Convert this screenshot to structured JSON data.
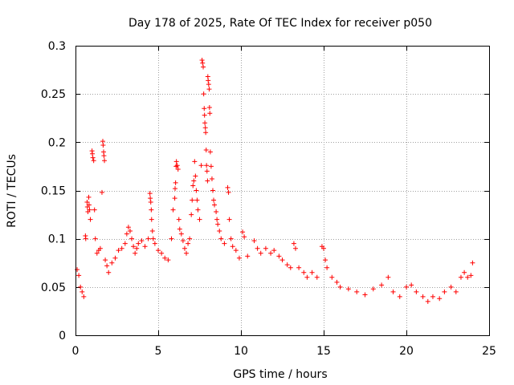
{
  "chart_data": {
    "type": "scatter",
    "title": "Day 178 of 2025, Rate Of TEC Index for receiver p050",
    "xlabel": "GPS time / hours",
    "ylabel": "ROTI / TECUs",
    "xlim": [
      0,
      25
    ],
    "ylim": [
      0,
      0.3
    ],
    "x_ticks": [
      0,
      5,
      10,
      15,
      20,
      25
    ],
    "x_tick_labels": [
      "0",
      "5",
      "10",
      "15",
      "20",
      "25"
    ],
    "y_ticks": [
      0,
      0.05,
      0.1,
      0.15,
      0.2,
      0.25,
      0.3
    ],
    "y_tick_labels": [
      "0",
      "0.05",
      "0.1",
      "0.15",
      "0.2",
      "0.25",
      "0.3"
    ],
    "grid": true,
    "marker": "+",
    "color": "#ff0000",
    "series": [
      {
        "name": "ROTI",
        "points": [
          [
            0.1,
            0.068
          ],
          [
            0.2,
            0.062
          ],
          [
            0.3,
            0.05
          ],
          [
            0.4,
            0.045
          ],
          [
            0.5,
            0.04
          ],
          [
            0.6,
            0.103
          ],
          [
            0.62,
            0.1
          ],
          [
            0.7,
            0.138
          ],
          [
            0.72,
            0.133
          ],
          [
            0.75,
            0.128
          ],
          [
            0.8,
            0.143
          ],
          [
            0.82,
            0.135
          ],
          [
            0.85,
            0.13
          ],
          [
            0.9,
            0.12
          ],
          [
            1.0,
            0.191
          ],
          [
            1.02,
            0.188
          ],
          [
            1.05,
            0.184
          ],
          [
            1.1,
            0.181
          ],
          [
            1.15,
            0.13
          ],
          [
            1.2,
            0.1
          ],
          [
            1.3,
            0.085
          ],
          [
            1.4,
            0.088
          ],
          [
            1.5,
            0.09
          ],
          [
            1.6,
            0.148
          ],
          [
            1.65,
            0.201
          ],
          [
            1.67,
            0.197
          ],
          [
            1.7,
            0.19
          ],
          [
            1.72,
            0.186
          ],
          [
            1.75,
            0.181
          ],
          [
            1.8,
            0.078
          ],
          [
            1.9,
            0.072
          ],
          [
            2.0,
            0.065
          ],
          [
            2.2,
            0.075
          ],
          [
            2.4,
            0.08
          ],
          [
            2.6,
            0.088
          ],
          [
            2.8,
            0.09
          ],
          [
            3.0,
            0.095
          ],
          [
            3.1,
            0.105
          ],
          [
            3.2,
            0.112
          ],
          [
            3.3,
            0.108
          ],
          [
            3.4,
            0.1
          ],
          [
            3.5,
            0.092
          ],
          [
            3.6,
            0.085
          ],
          [
            3.7,
            0.09
          ],
          [
            3.8,
            0.095
          ],
          [
            4.0,
            0.098
          ],
          [
            4.2,
            0.092
          ],
          [
            4.4,
            0.1
          ],
          [
            4.5,
            0.147
          ],
          [
            4.52,
            0.142
          ],
          [
            4.55,
            0.138
          ],
          [
            4.58,
            0.13
          ],
          [
            4.6,
            0.12
          ],
          [
            4.65,
            0.108
          ],
          [
            4.7,
            0.1
          ],
          [
            4.8,
            0.095
          ],
          [
            5.0,
            0.088
          ],
          [
            5.2,
            0.085
          ],
          [
            5.4,
            0.08
          ],
          [
            5.6,
            0.078
          ],
          [
            5.8,
            0.1
          ],
          [
            5.9,
            0.13
          ],
          [
            6.0,
            0.142
          ],
          [
            6.02,
            0.152
          ],
          [
            6.05,
            0.158
          ],
          [
            6.08,
            0.175
          ],
          [
            6.1,
            0.18
          ],
          [
            6.15,
            0.176
          ],
          [
            6.2,
            0.172
          ],
          [
            6.25,
            0.12
          ],
          [
            6.3,
            0.11
          ],
          [
            6.4,
            0.105
          ],
          [
            6.5,
            0.098
          ],
          [
            6.6,
            0.09
          ],
          [
            6.7,
            0.085
          ],
          [
            6.8,
            0.095
          ],
          [
            6.9,
            0.1
          ],
          [
            7.0,
            0.125
          ],
          [
            7.05,
            0.14
          ],
          [
            7.1,
            0.155
          ],
          [
            7.15,
            0.16
          ],
          [
            7.2,
            0.18
          ],
          [
            7.25,
            0.165
          ],
          [
            7.3,
            0.15
          ],
          [
            7.35,
            0.14
          ],
          [
            7.4,
            0.13
          ],
          [
            7.5,
            0.12
          ],
          [
            7.6,
            0.176
          ],
          [
            7.65,
            0.285
          ],
          [
            7.68,
            0.282
          ],
          [
            7.72,
            0.278
          ],
          [
            7.75,
            0.25
          ],
          [
            7.78,
            0.235
          ],
          [
            7.8,
            0.228
          ],
          [
            7.82,
            0.22
          ],
          [
            7.85,
            0.215
          ],
          [
            7.87,
            0.21
          ],
          [
            7.9,
            0.192
          ],
          [
            7.92,
            0.176
          ],
          [
            7.95,
            0.17
          ],
          [
            7.98,
            0.16
          ],
          [
            8.0,
            0.268
          ],
          [
            8.02,
            0.264
          ],
          [
            8.05,
            0.26
          ],
          [
            8.08,
            0.255
          ],
          [
            8.1,
            0.236
          ],
          [
            8.12,
            0.23
          ],
          [
            8.15,
            0.19
          ],
          [
            8.2,
            0.175
          ],
          [
            8.25,
            0.162
          ],
          [
            8.3,
            0.15
          ],
          [
            8.35,
            0.14
          ],
          [
            8.4,
            0.135
          ],
          [
            8.5,
            0.128
          ],
          [
            8.55,
            0.12
          ],
          [
            8.6,
            0.115
          ],
          [
            8.7,
            0.108
          ],
          [
            8.8,
            0.1
          ],
          [
            9.0,
            0.095
          ],
          [
            9.2,
            0.153
          ],
          [
            9.25,
            0.148
          ],
          [
            9.3,
            0.12
          ],
          [
            9.4,
            0.1
          ],
          [
            9.5,
            0.092
          ],
          [
            9.7,
            0.088
          ],
          [
            9.9,
            0.08
          ],
          [
            10.1,
            0.107
          ],
          [
            10.2,
            0.102
          ],
          [
            10.4,
            0.082
          ],
          [
            10.8,
            0.098
          ],
          [
            11.0,
            0.09
          ],
          [
            11.2,
            0.085
          ],
          [
            11.5,
            0.09
          ],
          [
            11.8,
            0.085
          ],
          [
            12.0,
            0.088
          ],
          [
            12.3,
            0.082
          ],
          [
            12.5,
            0.078
          ],
          [
            12.8,
            0.073
          ],
          [
            13.0,
            0.07
          ],
          [
            13.2,
            0.095
          ],
          [
            13.3,
            0.09
          ],
          [
            13.5,
            0.07
          ],
          [
            13.8,
            0.065
          ],
          [
            14.0,
            0.06
          ],
          [
            14.3,
            0.065
          ],
          [
            14.6,
            0.06
          ],
          [
            14.9,
            0.092
          ],
          [
            15.0,
            0.09
          ],
          [
            15.1,
            0.078
          ],
          [
            15.2,
            0.07
          ],
          [
            15.5,
            0.06
          ],
          [
            15.8,
            0.055
          ],
          [
            16.0,
            0.05
          ],
          [
            16.5,
            0.048
          ],
          [
            17.0,
            0.045
          ],
          [
            17.5,
            0.042
          ],
          [
            18.0,
            0.048
          ],
          [
            18.5,
            0.052
          ],
          [
            18.9,
            0.06
          ],
          [
            19.2,
            0.045
          ],
          [
            19.6,
            0.04
          ],
          [
            20.0,
            0.05
          ],
          [
            20.3,
            0.052
          ],
          [
            20.6,
            0.045
          ],
          [
            21.0,
            0.04
          ],
          [
            21.3,
            0.035
          ],
          [
            21.6,
            0.04
          ],
          [
            22.0,
            0.038
          ],
          [
            22.3,
            0.045
          ],
          [
            22.7,
            0.05
          ],
          [
            23.0,
            0.045
          ],
          [
            23.3,
            0.06
          ],
          [
            23.5,
            0.065
          ],
          [
            23.7,
            0.06
          ],
          [
            23.9,
            0.062
          ],
          [
            24.0,
            0.075
          ]
        ]
      }
    ]
  }
}
